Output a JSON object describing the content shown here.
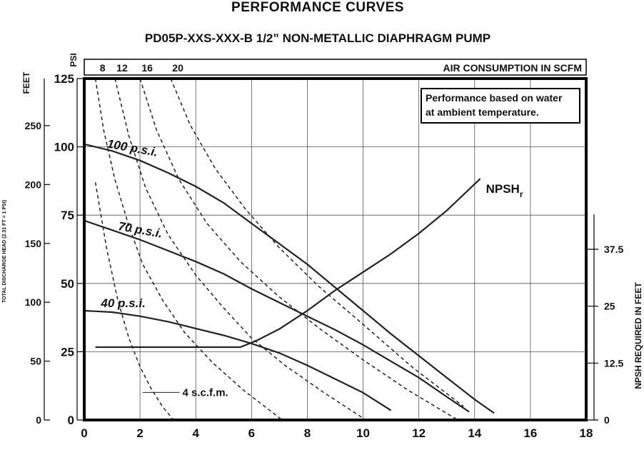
{
  "page": {
    "title": "PERFORMANCE CURVES",
    "subtitle": "PD05P-XXS-XXX-B  1/2” NON-METALLIC DIAPHRAGM PUMP"
  },
  "chart_data": {
    "type": "line",
    "title": "PERFORMANCE CURVES",
    "subtitle": "PD05P-XXS-XXX-B  1/2” NON-METALLIC DIAPHRAGM PUMP",
    "xlim": [
      0,
      18
    ],
    "x_ticks": [
      "0",
      "2",
      "4",
      "6",
      "8",
      "10",
      "12",
      "14",
      "16",
      "18"
    ],
    "xlabel": "",
    "left_axis_feet": {
      "title": "FEET",
      "side_title": "TOTAL DISCHARGE HEAD (2.31 FT = 1 PSI)",
      "ylim": [
        0,
        290
      ],
      "ticks": [
        "0",
        "50",
        "100",
        "150",
        "200",
        "250"
      ]
    },
    "left_axis_psi": {
      "title": "PSI",
      "ylim": [
        0,
        125
      ],
      "ticks": [
        "0",
        "25",
        "50",
        "75",
        "100",
        "125"
      ]
    },
    "right_axis": {
      "title": "NPSH REQUIRED IN FEET",
      "ylim": [
        0,
        75
      ],
      "ticks": [
        "0",
        "12.5",
        "25",
        "37.5"
      ]
    },
    "top_axis": {
      "title": "AIR CONSUMPTION IN SCFM",
      "ticks": [
        "8",
        "12",
        "16",
        "20"
      ]
    },
    "note": [
      "Performance based on water",
      "at ambient temperature."
    ],
    "grid": true,
    "series": [
      {
        "name": "100 p.s.i.",
        "axis": "psi",
        "style": "solid",
        "x": [
          0,
          1,
          2,
          3,
          4,
          5,
          6,
          7,
          8,
          9,
          10,
          11,
          12,
          13,
          14,
          14.7
        ],
        "y": [
          101,
          98.5,
          95,
          90.5,
          85.5,
          79.5,
          72,
          64.5,
          57,
          48.5,
          40,
          31.5,
          23.5,
          15.5,
          7.5,
          2.5
        ]
      },
      {
        "name": "70 p.s.i.",
        "axis": "psi",
        "style": "solid",
        "x": [
          0,
          1,
          2,
          3,
          4,
          5,
          6,
          7,
          8,
          9,
          10,
          11,
          12,
          13,
          13.8
        ],
        "y": [
          73,
          69.5,
          66,
          62,
          58,
          53.5,
          48,
          43,
          38,
          33,
          27.5,
          21.5,
          15.5,
          8.5,
          3
        ]
      },
      {
        "name": "40 p.s.i.",
        "axis": "psi",
        "style": "solid",
        "x": [
          0,
          1,
          2,
          3,
          4,
          5,
          6,
          7,
          8,
          9,
          10,
          11
        ],
        "y": [
          40,
          39.5,
          38,
          36,
          33.5,
          31,
          28,
          24.5,
          20,
          15,
          10,
          3.5
        ]
      },
      {
        "name": "NPSHr",
        "axis": "npsh",
        "style": "solid",
        "x": [
          0.4,
          5.6,
          6.2,
          7,
          8,
          9,
          10,
          11,
          12,
          13,
          14.2
        ],
        "y": [
          16,
          16,
          17.5,
          20,
          24,
          28.5,
          32.5,
          36.5,
          41,
          46,
          53
        ]
      },
      {
        "name": "4 s.c.f.m.",
        "axis": "psi",
        "style": "dashed",
        "x": [
          0.4,
          0.8,
          1.2,
          1.6,
          2,
          2.4,
          2.8,
          3.2
        ],
        "y": [
          87,
          63,
          44,
          30,
          19.5,
          11.5,
          5,
          0
        ]
      },
      {
        "name": "8",
        "axis": "psi",
        "style": "dashed",
        "x": [
          0.4,
          0.7,
          1.1,
          1.6,
          2.1,
          2.8,
          3.6,
          4.6,
          5.7,
          7.1
        ],
        "y": [
          125,
          106,
          88,
          71,
          57,
          44,
          32,
          21,
          11,
          0
        ]
      },
      {
        "name": "12",
        "axis": "psi",
        "style": "dashed",
        "x": [
          1.1,
          1.6,
          2.2,
          3,
          4,
          5,
          6,
          7.2,
          8.6,
          10.1
        ],
        "y": [
          125,
          104,
          85,
          68,
          53,
          41,
          30,
          20,
          10,
          0
        ]
      },
      {
        "name": "16",
        "axis": "psi",
        "style": "dashed",
        "x": [
          2,
          2.6,
          3.4,
          4.4,
          5.6,
          7,
          8.5,
          10,
          11.6,
          13.4
        ],
        "y": [
          125,
          106,
          88,
          72,
          58,
          45,
          33,
          22,
          11,
          0
        ]
      },
      {
        "name": "20",
        "axis": "psi",
        "style": "dashed",
        "x": [
          3.1,
          3.8,
          4.7,
          5.8,
          7,
          8.4,
          10,
          11.8,
          13.6
        ],
        "y": [
          125,
          108,
          92,
          77,
          63,
          49,
          35,
          19,
          5
        ]
      }
    ]
  }
}
